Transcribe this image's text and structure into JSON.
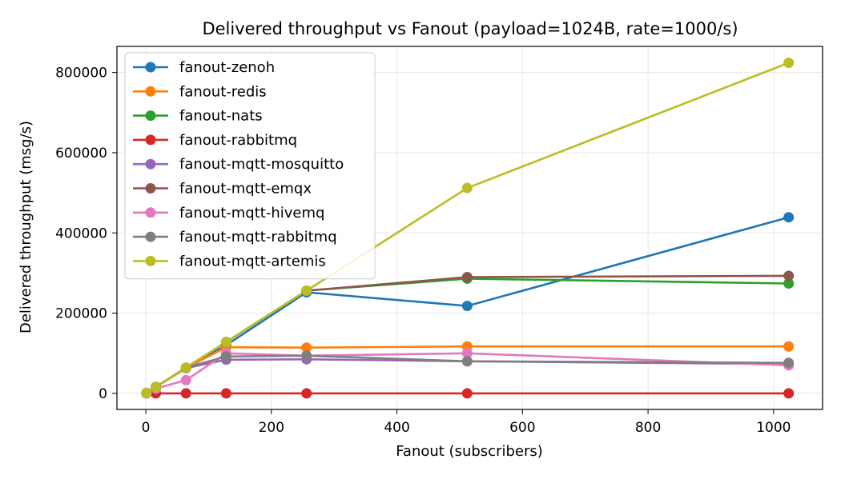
{
  "chart_data": {
    "type": "line",
    "title": "Delivered throughput vs Fanout (payload=1024B, rate=1000/s)",
    "xlabel": "Fanout (subscribers)",
    "ylabel": "Delivered throughput (msg/s)",
    "xlim": [
      -46,
      1078
    ],
    "ylim": [
      -40000,
      865000
    ],
    "xticks": [
      0,
      200,
      400,
      600,
      800,
      1000
    ],
    "yticks": [
      0,
      200000,
      400000,
      600000,
      800000
    ],
    "grid": true,
    "legend_position": "top-left",
    "x": [
      1,
      16,
      64,
      128,
      256,
      512,
      1024
    ],
    "series": [
      {
        "name": "fanout-zenoh",
        "color": "#1f77b4",
        "values": [
          1000,
          16000,
          63000,
          120000,
          252000,
          218000,
          439000
        ]
      },
      {
        "name": "fanout-redis",
        "color": "#ff7f0e",
        "values": [
          1000,
          16000,
          63000,
          115000,
          114000,
          117000,
          117000
        ]
      },
      {
        "name": "fanout-nats",
        "color": "#2ca02c",
        "values": [
          1000,
          16000,
          64000,
          128000,
          256000,
          286000,
          274000
        ]
      },
      {
        "name": "fanout-rabbitmq",
        "color": "#d62728",
        "values": [
          0,
          0,
          0,
          0,
          0,
          0,
          0
        ]
      },
      {
        "name": "fanout-mqtt-mosquitto",
        "color": "#9467bd",
        "values": [
          1000,
          16000,
          63000,
          84000,
          85000,
          80000,
          73000
        ]
      },
      {
        "name": "fanout-mqtt-emqx",
        "color": "#8c564b",
        "values": [
          1000,
          16000,
          64000,
          128000,
          256000,
          290000,
          293000
        ]
      },
      {
        "name": "fanout-mqtt-hivemq",
        "color": "#e377c2",
        "values": [
          0,
          12000,
          33000,
          100000,
          94000,
          100000,
          70000
        ]
      },
      {
        "name": "fanout-mqtt-rabbitmq",
        "color": "#7f7f7f",
        "values": [
          1000,
          16000,
          64000,
          92000,
          94000,
          80000,
          76000
        ]
      },
      {
        "name": "fanout-mqtt-artemis",
        "color": "#bcbd22",
        "values": [
          1000,
          16000,
          64000,
          128000,
          256000,
          512000,
          824000
        ]
      }
    ]
  }
}
